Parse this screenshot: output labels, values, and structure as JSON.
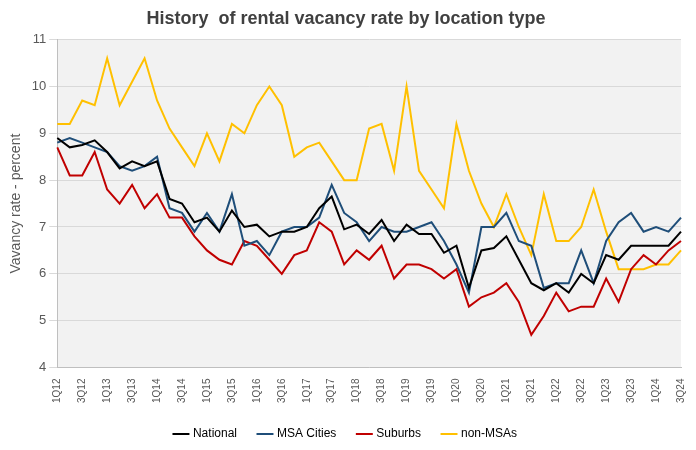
{
  "chart_data": {
    "type": "line",
    "title": "History  of rental vacancy rate by location type",
    "y_label": "Vavancy rate - percent",
    "categories": [
      "1Q12",
      null,
      "3Q12",
      null,
      "1Q13",
      null,
      "3Q13",
      null,
      "1Q14",
      null,
      "3Q14",
      null,
      "1Q15",
      null,
      "3Q15",
      null,
      "1Q16",
      null,
      "3Q16",
      null,
      "1Q17",
      null,
      "3Q17",
      null,
      "1Q18",
      null,
      "3Q18",
      null,
      "1Q19",
      null,
      "3Q19",
      null,
      "1Q20",
      null,
      "3Q20",
      null,
      "1Q21",
      null,
      "3Q21",
      null,
      "1Q22",
      null,
      "3Q22",
      null,
      "1Q23",
      null,
      "3Q23",
      null,
      "1Q24",
      null,
      "3Q24"
    ],
    "series": [
      {
        "name": "National",
        "color": "#000000",
        "values": [
          8.9,
          8.7,
          8.75,
          8.85,
          8.6,
          8.25,
          8.4,
          8.3,
          8.4,
          7.6,
          7.5,
          7.1,
          7.2,
          6.9,
          7.35,
          7.0,
          7.05,
          6.8,
          6.9,
          6.9,
          7.0,
          7.4,
          7.65,
          6.95,
          7.05,
          6.85,
          7.15,
          6.7,
          7.05,
          6.85,
          6.85,
          6.45,
          6.6,
          5.7,
          6.5,
          6.55,
          6.8,
          6.3,
          5.8,
          5.65,
          5.8,
          5.6,
          6.0,
          5.8,
          6.4,
          6.3,
          6.6,
          6.6,
          6.6,
          6.6,
          6.9
        ]
      },
      {
        "name": "MSA Cities",
        "color": "#1f4e79",
        "values": [
          8.8,
          8.9,
          8.8,
          8.7,
          8.6,
          8.3,
          8.2,
          8.3,
          8.5,
          7.4,
          7.3,
          6.9,
          7.3,
          6.9,
          7.7,
          6.6,
          6.7,
          6.4,
          6.9,
          7.0,
          7.0,
          7.2,
          7.9,
          7.3,
          7.1,
          6.7,
          7.0,
          6.9,
          6.9,
          7.0,
          7.1,
          6.7,
          6.2,
          5.6,
          7.0,
          7.0,
          7.3,
          6.7,
          6.6,
          5.7,
          5.8,
          5.8,
          6.5,
          5.8,
          6.7,
          7.1,
          7.3,
          6.9,
          7.0,
          6.9,
          7.2
        ]
      },
      {
        "name": "Suburbs",
        "color": "#c00000",
        "values": [
          8.7,
          8.1,
          8.1,
          8.6,
          7.8,
          7.5,
          7.9,
          7.4,
          7.7,
          7.2,
          7.2,
          6.8,
          6.5,
          6.3,
          6.2,
          6.7,
          6.6,
          6.3,
          6.0,
          6.4,
          6.5,
          7.1,
          6.9,
          6.2,
          6.5,
          6.3,
          6.6,
          5.9,
          6.2,
          6.2,
          6.1,
          5.9,
          6.1,
          5.3,
          5.5,
          5.6,
          5.8,
          5.4,
          4.7,
          5.1,
          5.6,
          5.2,
          5.3,
          5.3,
          5.9,
          5.4,
          6.1,
          6.4,
          6.2,
          6.5,
          6.7
        ]
      },
      {
        "name": "non-MSAs",
        "color": "#ffc000",
        "values": [
          9.2,
          9.2,
          9.7,
          9.6,
          10.6,
          9.6,
          10.1,
          10.6,
          9.7,
          9.1,
          8.7,
          8.3,
          9.0,
          8.4,
          9.2,
          9.0,
          9.6,
          10.0,
          9.6,
          8.5,
          8.7,
          8.8,
          8.4,
          8.0,
          8.0,
          9.1,
          9.2,
          8.2,
          10.0,
          8.2,
          7.8,
          7.4,
          9.2,
          8.2,
          7.5,
          7.0,
          7.7,
          7.0,
          6.4,
          7.7,
          6.7,
          6.7,
          7.0,
          7.8,
          6.9,
          6.1,
          6.1,
          6.1,
          6.2,
          6.2,
          6.5
        ]
      }
    ],
    "ylim": [
      4,
      11
    ],
    "yticks": [
      4,
      5,
      6,
      7,
      8,
      9,
      10,
      11
    ],
    "grid": true,
    "legend": "bottom"
  }
}
